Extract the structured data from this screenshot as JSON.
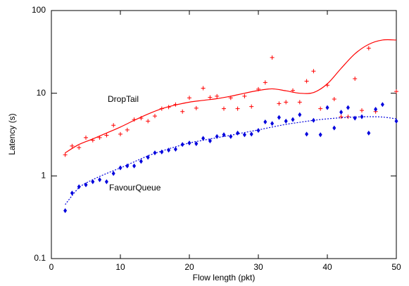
{
  "chart_data": {
    "type": "scatter",
    "x_label": "Flow length (pkt)",
    "y_label": "Latency (s)",
    "xlim": [
      0,
      50
    ],
    "xticks": [
      0,
      10,
      20,
      30,
      40,
      50
    ],
    "ylim": [
      0.1,
      100
    ],
    "yticks": [
      0.1,
      1,
      10,
      100
    ],
    "yscale": "log",
    "series": [
      {
        "color": "#ff0000",
        "marker": "plus",
        "x": [
          2,
          3,
          4,
          5,
          6,
          7,
          8,
          9,
          10,
          11,
          12,
          13,
          14,
          15,
          16,
          17,
          18,
          19,
          20,
          21,
          22,
          23,
          24,
          25,
          26,
          27,
          28,
          29,
          30,
          31,
          32,
          33,
          34,
          35,
          36,
          37,
          38,
          39,
          40,
          41,
          42,
          43,
          44,
          45,
          46,
          47,
          50
        ],
        "values": [
          1.8,
          2.3,
          2.2,
          2.9,
          2.7,
          2.9,
          3.1,
          4.1,
          3.2,
          3.6,
          4.8,
          5.0,
          4.6,
          5.3,
          6.5,
          6.8,
          7.3,
          6.0,
          8.8,
          6.6,
          11.5,
          8.9,
          9.2,
          6.5,
          8.8,
          6.5,
          9.2,
          6.9,
          11.2,
          13.5,
          27,
          7.5,
          7.8,
          10.8,
          7.8,
          14,
          18.5,
          6.5,
          12.5,
          8.5,
          5.2,
          5.2,
          15,
          6.2,
          35,
          6.0,
          10.5
        ]
      },
      {
        "color": "#0000dd",
        "marker": "diamond",
        "x": [
          2,
          3,
          4,
          5,
          6,
          7,
          8,
          9,
          10,
          11,
          12,
          13,
          14,
          15,
          16,
          17,
          18,
          19,
          20,
          21,
          22,
          23,
          24,
          25,
          26,
          27,
          28,
          29,
          30,
          31,
          32,
          33,
          34,
          35,
          36,
          37,
          38,
          39,
          40,
          41,
          42,
          43,
          44,
          45,
          46,
          47,
          48,
          50
        ],
        "values": [
          0.38,
          0.62,
          0.74,
          0.78,
          0.85,
          0.9,
          0.85,
          1.07,
          1.25,
          1.32,
          1.32,
          1.5,
          1.68,
          1.9,
          1.95,
          2.05,
          2.1,
          2.4,
          2.5,
          2.45,
          2.85,
          2.65,
          3.0,
          3.15,
          3.0,
          3.3,
          3.15,
          3.2,
          3.55,
          4.5,
          4.3,
          5.1,
          4.6,
          4.8,
          5.5,
          3.2,
          4.7,
          3.15,
          6.7,
          3.8,
          5.9,
          6.7,
          5.0,
          5.2,
          3.3,
          6.4,
          7.3,
          4.6
        ]
      },
      {
        "color": "#ff0000",
        "line": "solid",
        "x": [
          2,
          4,
          6,
          8,
          10,
          12,
          14,
          16,
          18,
          20,
          22,
          24,
          26,
          28,
          30,
          32,
          34,
          36,
          38,
          40,
          42,
          44,
          46,
          48,
          50
        ],
        "values": [
          1.9,
          2.4,
          2.8,
          3.3,
          3.9,
          4.7,
          5.6,
          6.5,
          7.2,
          7.8,
          8.2,
          8.6,
          9.2,
          10,
          10.8,
          11.3,
          10.7,
          10,
          10.2,
          13,
          20,
          30,
          39,
          44,
          44
        ]
      },
      {
        "color": "#0000dd",
        "line": "dotted",
        "x": [
          2,
          4,
          6,
          8,
          10,
          12,
          14,
          16,
          18,
          20,
          22,
          24,
          26,
          28,
          30,
          32,
          34,
          36,
          38,
          40,
          42,
          44,
          46,
          48,
          50
        ],
        "values": [
          0.45,
          0.72,
          0.9,
          1.07,
          1.25,
          1.48,
          1.75,
          2.0,
          2.25,
          2.5,
          2.7,
          2.9,
          3.1,
          3.35,
          3.6,
          3.9,
          4.2,
          4.45,
          4.7,
          4.9,
          5.05,
          5.15,
          5.2,
          5.15,
          4.9
        ]
      }
    ],
    "annotations": [
      "DropTail",
      "FavourQueue"
    ]
  }
}
